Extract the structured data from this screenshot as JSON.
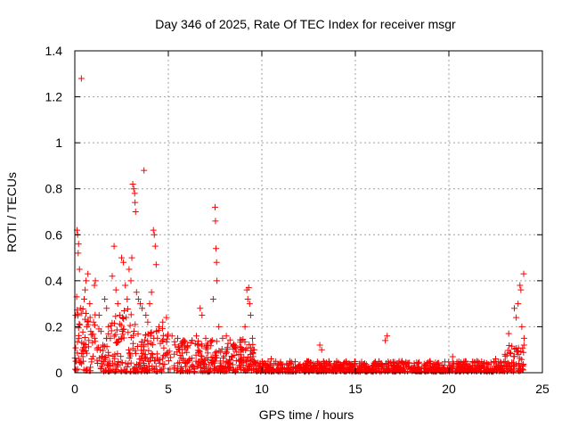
{
  "chart_data": {
    "type": "scatter",
    "title": "Day 346 of 2025, Rate Of TEC Index for receiver msgr",
    "xlabel": "GPS time / hours",
    "ylabel": "ROTI / TECUs",
    "xlim": [
      0,
      25
    ],
    "ylim": [
      0,
      1.4
    ],
    "x_ticks": [
      0,
      5,
      10,
      15,
      20,
      25
    ],
    "x_tick_labels": [
      "0",
      "5",
      "10",
      "15",
      "20",
      "25"
    ],
    "y_ticks": [
      0,
      0.2,
      0.4,
      0.6,
      0.8,
      1.0,
      1.2,
      1.4
    ],
    "y_tick_labels": [
      "0",
      "0.2",
      "0.4",
      "0.6",
      "0.8",
      "1",
      "1.2",
      "1.4"
    ],
    "grid": true,
    "marker": "plus",
    "color": "#ff0000",
    "series": [
      {
        "name": "ROTI",
        "points": [
          [
            0.05,
            0.05
          ],
          [
            0.1,
            0.33
          ],
          [
            0.12,
            0.62
          ],
          [
            0.15,
            0.6
          ],
          [
            0.18,
            0.52
          ],
          [
            0.2,
            0.56
          ],
          [
            0.22,
            0.15
          ],
          [
            0.25,
            0.45
          ],
          [
            0.3,
            0.28
          ],
          [
            0.35,
            1.28
          ],
          [
            0.4,
            0.1
          ],
          [
            0.45,
            0.05
          ],
          [
            0.5,
            0.32
          ],
          [
            0.55,
            0.36
          ],
          [
            0.6,
            0.4
          ],
          [
            0.65,
            0.2
          ],
          [
            0.7,
            0.43
          ],
          [
            0.75,
            0.14
          ],
          [
            0.8,
            0.3
          ],
          [
            0.85,
            0.18
          ],
          [
            0.9,
            0.06
          ],
          [
            1.0,
            0.22
          ],
          [
            1.05,
            0.38
          ],
          [
            1.1,
            0.4
          ],
          [
            1.2,
            0.1
          ],
          [
            1.3,
            0.25
          ],
          [
            1.4,
            0.18
          ],
          [
            1.5,
            0.12
          ],
          [
            1.6,
            0.32
          ],
          [
            1.7,
            0.28
          ],
          [
            1.8,
            0.2
          ],
          [
            1.9,
            0.15
          ],
          [
            2.0,
            0.42
          ],
          [
            2.1,
            0.55
          ],
          [
            2.2,
            0.36
          ],
          [
            2.3,
            0.3
          ],
          [
            2.4,
            0.25
          ],
          [
            2.5,
            0.5
          ],
          [
            2.6,
            0.48
          ],
          [
            2.7,
            0.38
          ],
          [
            2.8,
            0.32
          ],
          [
            2.9,
            0.45
          ],
          [
            3.0,
            0.4
          ],
          [
            3.05,
            0.5
          ],
          [
            3.1,
            0.82
          ],
          [
            3.15,
            0.8
          ],
          [
            3.2,
            0.78
          ],
          [
            3.22,
            0.74
          ],
          [
            3.25,
            0.7
          ],
          [
            3.3,
            0.35
          ],
          [
            3.4,
            0.32
          ],
          [
            3.5,
            0.3
          ],
          [
            3.6,
            0.28
          ],
          [
            3.7,
            0.88
          ],
          [
            3.8,
            0.25
          ],
          [
            3.9,
            0.22
          ],
          [
            4.0,
            0.3
          ],
          [
            4.1,
            0.35
          ],
          [
            4.2,
            0.62
          ],
          [
            4.25,
            0.6
          ],
          [
            4.3,
            0.55
          ],
          [
            4.35,
            0.47
          ],
          [
            4.5,
            0.2
          ],
          [
            4.7,
            0.22
          ],
          [
            4.9,
            0.24
          ],
          [
            5.2,
            0.16
          ],
          [
            5.5,
            0.15
          ],
          [
            5.8,
            0.14
          ],
          [
            6.2,
            0.13
          ],
          [
            6.5,
            0.16
          ],
          [
            6.7,
            0.28
          ],
          [
            6.8,
            0.25
          ],
          [
            7.0,
            0.15
          ],
          [
            7.4,
            0.32
          ],
          [
            7.5,
            0.72
          ],
          [
            7.52,
            0.66
          ],
          [
            7.55,
            0.54
          ],
          [
            7.58,
            0.48
          ],
          [
            7.6,
            0.4
          ],
          [
            7.7,
            0.2
          ],
          [
            7.9,
            0.15
          ],
          [
            8.1,
            0.16
          ],
          [
            8.5,
            0.12
          ],
          [
            8.9,
            0.1
          ],
          [
            9.1,
            0.2
          ],
          [
            9.2,
            0.36
          ],
          [
            9.25,
            0.32
          ],
          [
            9.3,
            0.37
          ],
          [
            9.35,
            0.3
          ],
          [
            9.4,
            0.25
          ],
          [
            9.5,
            0.15
          ],
          [
            9.6,
            0.1
          ],
          [
            10.5,
            0.06
          ],
          [
            11.5,
            0.05
          ],
          [
            12.5,
            0.05
          ],
          [
            13.1,
            0.12
          ],
          [
            13.2,
            0.1
          ],
          [
            14.0,
            0.05
          ],
          [
            15.5,
            0.04
          ],
          [
            16.6,
            0.14
          ],
          [
            16.7,
            0.16
          ],
          [
            17.5,
            0.05
          ],
          [
            19.0,
            0.05
          ],
          [
            20.2,
            0.07
          ],
          [
            21.5,
            0.05
          ],
          [
            22.5,
            0.06
          ],
          [
            23.0,
            0.08
          ],
          [
            23.2,
            0.17
          ],
          [
            23.5,
            0.28
          ],
          [
            23.6,
            0.24
          ],
          [
            23.7,
            0.3
          ],
          [
            23.8,
            0.38
          ],
          [
            23.85,
            0.36
          ],
          [
            23.9,
            0.2
          ],
          [
            24.0,
            0.43
          ],
          [
            24.02,
            0.15
          ]
        ]
      }
    ]
  }
}
